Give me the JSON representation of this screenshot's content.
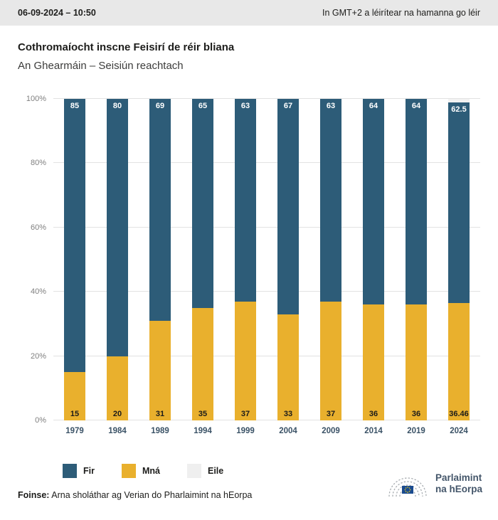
{
  "header": {
    "datetime": "06-09-2024 – 10:50",
    "timezone_note": "In GMT+2 a léirítear na hamanna go léir"
  },
  "title": "Cothromaíocht inscne Feisirí de réir bliana",
  "subtitle": "An Ghearmáin – Seisiún reachtach",
  "chart_data": {
    "type": "bar",
    "stacked": true,
    "title": "Cothromaíocht inscne Feisirí de réir bliana",
    "subtitle": "An Ghearmáin – Seisiún reachtach",
    "categories": [
      "1979",
      "1984",
      "1989",
      "1994",
      "1999",
      "2004",
      "2009",
      "2014",
      "2019",
      "2024"
    ],
    "series": [
      {
        "key": "fir",
        "name": "Fir",
        "color": "#2d5c78",
        "values": [
          85,
          80,
          69,
          65,
          63,
          67,
          63,
          64,
          64,
          62.5
        ],
        "labels": [
          "85",
          "80",
          "69",
          "65",
          "63",
          "67",
          "63",
          "64",
          "64",
          "62.5"
        ]
      },
      {
        "key": "mna",
        "name": "Mná",
        "color": "#e9b02d",
        "values": [
          15,
          20,
          31,
          35,
          37,
          33,
          37,
          36,
          36,
          36.46
        ],
        "labels": [
          "15",
          "20",
          "31",
          "35",
          "37",
          "33",
          "37",
          "36",
          "36",
          "36.46"
        ]
      },
      {
        "key": "eile",
        "name": "Eile",
        "color": "#f2f2f2",
        "values": [
          0,
          0,
          0,
          0,
          0,
          0,
          0,
          0,
          0,
          1.04
        ],
        "labels": [
          "",
          "",
          "",
          "",
          "",
          "",
          "",
          "",
          "",
          ""
        ]
      }
    ],
    "y_ticks": [
      "0%",
      "20%",
      "40%",
      "60%",
      "80%",
      "100%"
    ],
    "ylim": [
      0,
      100
    ],
    "grid": true,
    "legend_position": "bottom"
  },
  "legend": [
    {
      "label": "Fir",
      "color": "#2d5c78"
    },
    {
      "label": "Mná",
      "color": "#e9b02d"
    },
    {
      "label": "Eile",
      "color": "#efefef"
    }
  ],
  "footer": {
    "source_label": "Foinse:",
    "source_text": " Arna sholáthar ag Verian do Pharlaimint na hEorpa"
  },
  "logo": {
    "line1": "Parlaimint",
    "line2": "na hEorpa"
  },
  "colors": {
    "fir": "#2d5c78",
    "mna": "#e9b02d",
    "eile": "#f2f2f2",
    "topbar_bg": "#e8e8e8"
  }
}
